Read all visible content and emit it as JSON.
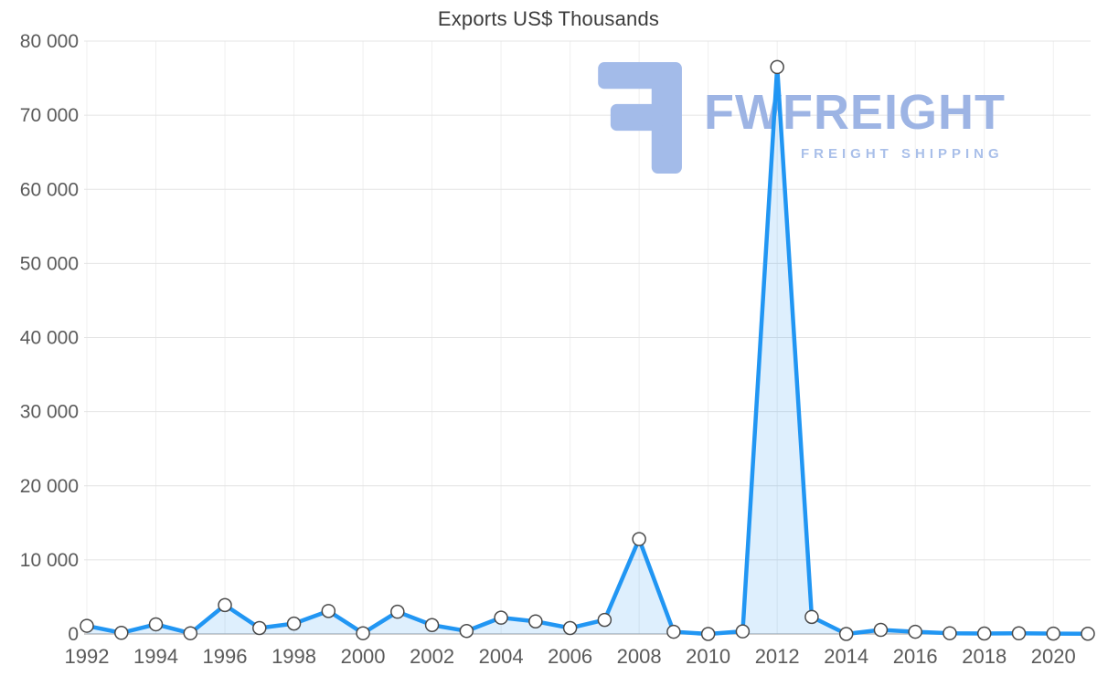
{
  "title": "Exports US$ Thousands",
  "watermark": {
    "brand": "FWFREIGHT",
    "tagline": "FREIGHT SHIPPING"
  },
  "chart_data": {
    "type": "line",
    "title": "Exports US$ Thousands",
    "series_name": "Exports US$ Thousands",
    "x": [
      1992,
      1993,
      1994,
      1995,
      1996,
      1997,
      1998,
      1999,
      2000,
      2001,
      2002,
      2003,
      2004,
      2005,
      2006,
      2007,
      2008,
      2009,
      2010,
      2011,
      2012,
      2013,
      2014,
      2015,
      2016,
      2017,
      2018,
      2019,
      2020,
      2021
    ],
    "values": [
      1100,
      150,
      1300,
      100,
      3900,
      800,
      1400,
      3100,
      100,
      3000,
      1200,
      400,
      2200,
      1700,
      800,
      1900,
      12800,
      300,
      0,
      350,
      76500,
      2300,
      0,
      550,
      300,
      100,
      60,
      90,
      50,
      30
    ],
    "xlabel": "",
    "ylabel": "",
    "ylim": [
      0,
      80000
    ],
    "yticks": [
      0,
      10000,
      20000,
      30000,
      40000,
      50000,
      60000,
      70000,
      80000
    ],
    "ytick_labels": [
      "0",
      "10 000",
      "20 000",
      "30 000",
      "40 000",
      "50 000",
      "60 000",
      "70 000",
      "80 000"
    ],
    "xticks": [
      1992,
      1994,
      1996,
      1998,
      2000,
      2002,
      2004,
      2006,
      2008,
      2010,
      2012,
      2014,
      2016,
      2018,
      2020
    ],
    "xtick_labels": [
      "1992",
      "1994",
      "1996",
      "1998",
      "2000",
      "2002",
      "2004",
      "2006",
      "2008",
      "2010",
      "2012",
      "2014",
      "2016",
      "2018",
      "2020"
    ],
    "grid": "horizontal gridlines with faint vertical gridlines at labeled years",
    "legend": "none",
    "marker": "circle",
    "colors": {
      "line": "#2196F3",
      "area_fill": "rgba(33,150,243,0.15)",
      "marker_fill": "#FFFFFF",
      "marker_stroke": "#4A4A4A",
      "grid": "#E4E4E4",
      "grid_vertical": "#EFEFEF",
      "axis_line": "#BDBDBD",
      "tick_text": "#5A5A5A",
      "title_text": "#3C3C3C",
      "watermark": "#A3BBE9"
    }
  }
}
